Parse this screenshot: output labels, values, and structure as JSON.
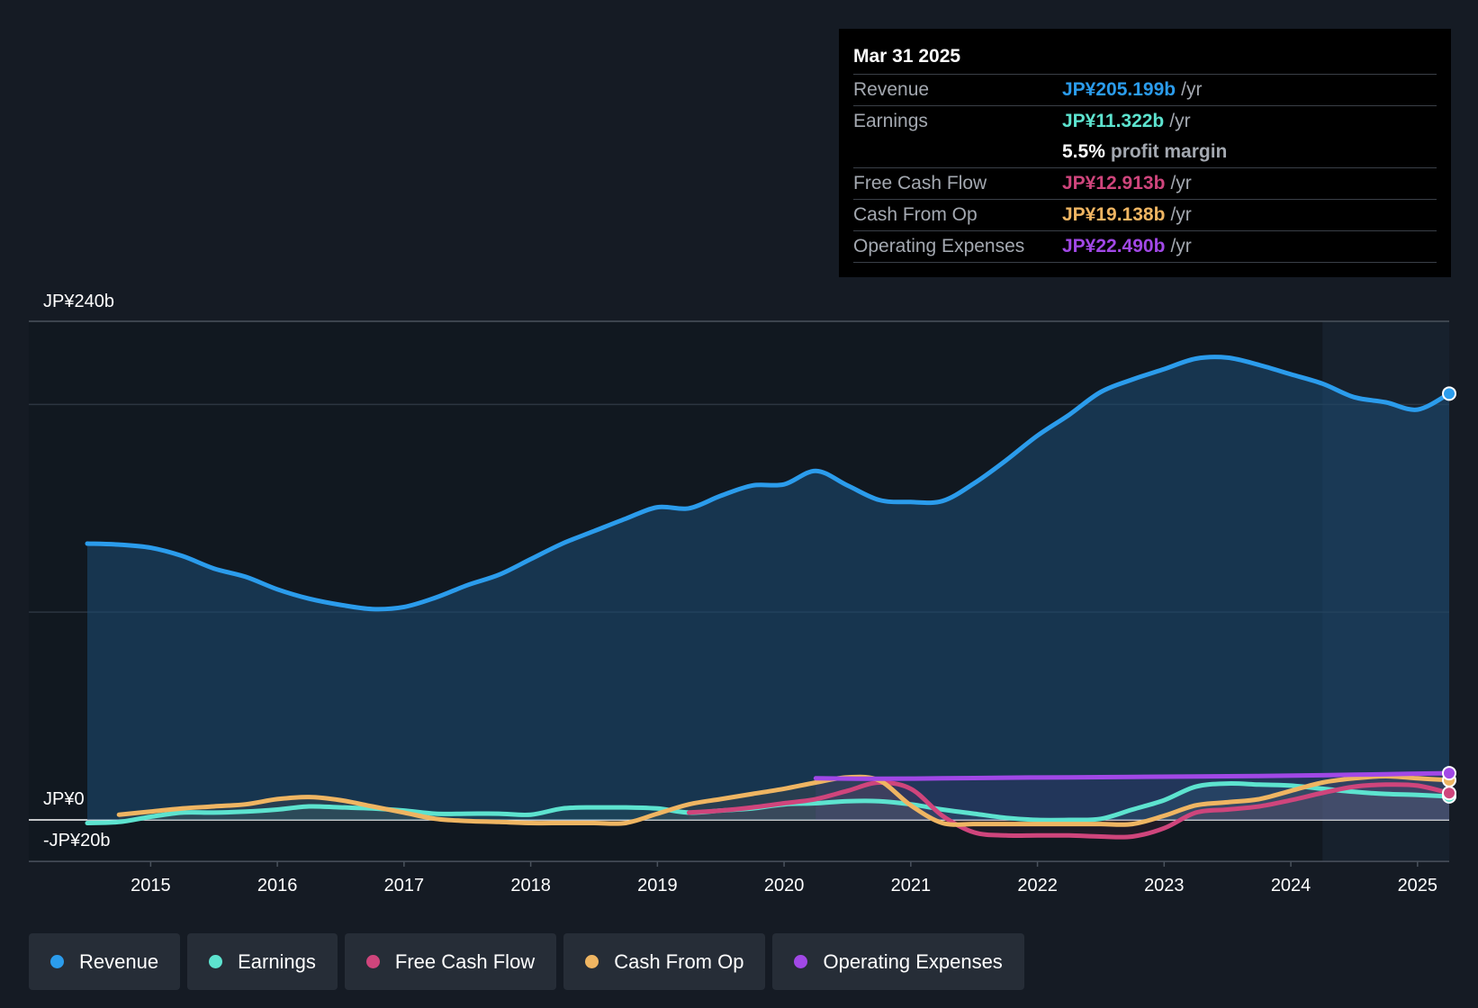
{
  "chart_data": {
    "type": "line",
    "y_axis": {
      "top_label": "JP¥240b",
      "zero_label": "JP¥0",
      "bottom_label": "-JP¥20b",
      "ylim": [
        -20,
        240
      ]
    },
    "x_ticks": [
      "2015",
      "2016",
      "2017",
      "2018",
      "2019",
      "2020",
      "2021",
      "2022",
      "2023",
      "2024",
      "2025"
    ],
    "x_range": [
      2014.5,
      2025.25
    ],
    "forecast_start": 2024.25,
    "series": [
      {
        "name": "Revenue",
        "color": "#2b9cec",
        "fill": true,
        "x": [
          2014.5,
          2014.75,
          2015.0,
          2015.25,
          2015.5,
          2015.75,
          2016.0,
          2016.25,
          2016.5,
          2016.75,
          2017.0,
          2017.25,
          2017.5,
          2017.75,
          2018.0,
          2018.25,
          2018.5,
          2018.75,
          2019.0,
          2019.25,
          2019.5,
          2019.75,
          2020.0,
          2020.25,
          2020.5,
          2020.75,
          2021.0,
          2021.25,
          2021.5,
          2021.75,
          2022.0,
          2022.25,
          2022.5,
          2022.75,
          2023.0,
          2023.25,
          2023.5,
          2023.75,
          2024.0,
          2024.25,
          2024.5,
          2024.75,
          2025.0,
          2025.25
        ],
        "values": [
          133,
          132.5,
          131,
          127,
          121,
          117,
          111,
          106.5,
          103.5,
          101.5,
          102.5,
          107,
          113,
          118,
          125.5,
          133,
          139,
          145,
          150.5,
          150,
          156,
          161,
          161.5,
          168,
          161,
          154,
          153,
          153.5,
          162,
          173,
          185,
          195,
          206,
          212,
          217,
          222,
          222.5,
          219,
          214.5,
          210,
          203.5,
          201,
          197.5,
          205.199
        ]
      },
      {
        "name": "Earnings",
        "color": "#5de3cf",
        "x": [
          2014.5,
          2014.75,
          2015.0,
          2015.25,
          2015.5,
          2015.75,
          2016.0,
          2016.25,
          2016.5,
          2016.75,
          2017.0,
          2017.25,
          2017.5,
          2017.75,
          2018.0,
          2018.25,
          2018.5,
          2018.75,
          2019.0,
          2019.25,
          2019.5,
          2019.75,
          2020.0,
          2020.25,
          2020.5,
          2020.75,
          2021.0,
          2021.25,
          2021.5,
          2021.75,
          2022.0,
          2022.25,
          2022.5,
          2022.75,
          2023.0,
          2023.25,
          2023.5,
          2023.75,
          2024.0,
          2024.25,
          2024.5,
          2024.75,
          2025.0,
          2025.25
        ],
        "values": [
          -1.5,
          -1,
          1.5,
          3.5,
          3.5,
          4,
          5,
          6.5,
          6,
          5.5,
          4.5,
          3,
          3,
          3,
          2.5,
          5.5,
          6,
          6,
          5.5,
          3.5,
          4.5,
          5.5,
          7.5,
          8,
          9,
          9,
          7.5,
          5,
          3,
          1,
          0,
          0,
          0.5,
          5,
          9.5,
          16,
          17.5,
          17,
          16.5,
          15,
          13.5,
          12.5,
          12,
          11.322
        ]
      },
      {
        "name": "Free Cash Flow",
        "color": "#cf457c",
        "x": [
          2019.25,
          2019.5,
          2019.75,
          2020.0,
          2020.25,
          2020.5,
          2020.75,
          2021.0,
          2021.25,
          2021.5,
          2021.75,
          2022.0,
          2022.25,
          2022.5,
          2022.75,
          2023.0,
          2023.25,
          2023.5,
          2023.75,
          2024.0,
          2024.25,
          2024.5,
          2024.75,
          2025.0,
          2025.25
        ],
        "values": [
          3.5,
          4.5,
          6,
          8,
          10,
          14,
          18,
          15,
          2,
          -6,
          -7.5,
          -7.5,
          -7.5,
          -8,
          -8,
          -4,
          3.5,
          5,
          6.5,
          9.5,
          13,
          16,
          17,
          16.5,
          12.913
        ]
      },
      {
        "name": "Cash From Op",
        "color": "#efb562",
        "x": [
          2014.75,
          2015.0,
          2015.25,
          2015.5,
          2015.75,
          2016.0,
          2016.25,
          2016.5,
          2016.75,
          2017.0,
          2017.25,
          2017.5,
          2017.75,
          2018.0,
          2018.25,
          2018.5,
          2018.75,
          2019.0,
          2019.25,
          2019.5,
          2019.75,
          2020.0,
          2020.25,
          2020.5,
          2020.75,
          2021.0,
          2021.25,
          2021.5,
          2021.75,
          2022.0,
          2022.25,
          2022.5,
          2022.75,
          2023.0,
          2023.25,
          2023.5,
          2023.75,
          2024.0,
          2024.25,
          2024.5,
          2024.75,
          2025.0,
          2025.25
        ],
        "values": [
          2.5,
          4,
          5.5,
          6.5,
          7.5,
          10,
          11,
          9.5,
          6.5,
          3.5,
          0.5,
          -0.5,
          -1,
          -1.5,
          -1.5,
          -1.5,
          -1.5,
          3,
          7.5,
          10,
          12.5,
          15,
          18,
          20.5,
          19,
          7,
          -1.5,
          -2,
          -2,
          -2,
          -2,
          -2,
          -2,
          2,
          7,
          8.5,
          10,
          14,
          18,
          20,
          21,
          20,
          19.138
        ]
      },
      {
        "name": "Operating Expenses",
        "color": "#a148e6",
        "x": [
          2020.25,
          2020.75,
          2021.25,
          2021.75,
          2022.25,
          2022.75,
          2023.25,
          2023.75,
          2024.25,
          2024.75,
          2025.25
        ],
        "values": [
          20,
          19.8,
          20,
          20.3,
          20.5,
          20.7,
          20.9,
          21.1,
          21.5,
          22,
          22.49
        ]
      }
    ]
  },
  "tooltip": {
    "date": "Mar 31 2025",
    "revenue_label": "Revenue",
    "revenue_value": "JP¥205.199b",
    "earnings_label": "Earnings",
    "earnings_value": "JP¥11.322b",
    "margin_value": "5.5%",
    "margin_text": "profit margin",
    "fcf_label": "Free Cash Flow",
    "fcf_value": "JP¥12.913b",
    "cfo_label": "Cash From Op",
    "cfo_value": "JP¥19.138b",
    "opex_label": "Operating Expenses",
    "opex_value": "JP¥22.490b",
    "unit": "/yr"
  },
  "legend": [
    {
      "label": "Revenue",
      "color": "#2b9cec"
    },
    {
      "label": "Earnings",
      "color": "#5de3cf"
    },
    {
      "label": "Free Cash Flow",
      "color": "#cf457c"
    },
    {
      "label": "Cash From Op",
      "color": "#efb562"
    },
    {
      "label": "Operating Expenses",
      "color": "#a148e6"
    }
  ]
}
